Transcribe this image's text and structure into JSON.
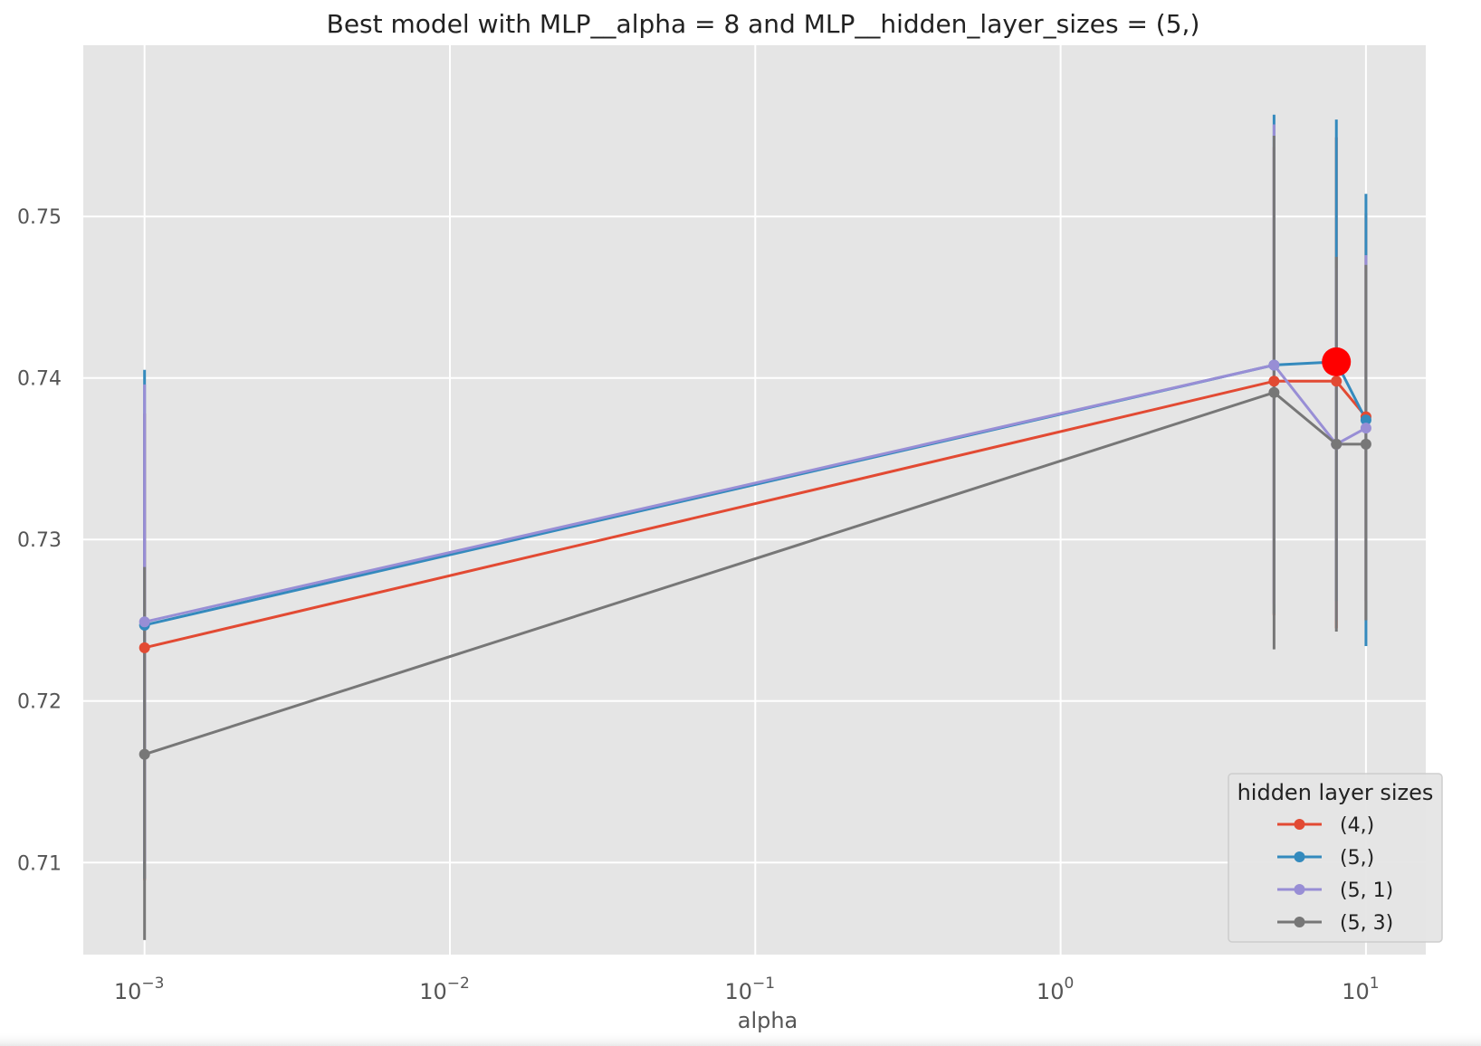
{
  "chart_data": {
    "type": "line",
    "title": "Best model with MLP__alpha = 8 and MLP__hidden_layer_sizes = (5,)",
    "xlabel": "alpha",
    "ylabel": "",
    "xscale": "log",
    "xlim": [
      0.00063,
      15.7
    ],
    "ylim": [
      0.7043,
      0.7606
    ],
    "x_ticks": [
      {
        "value": 0.001,
        "base": "10",
        "exp": "−3"
      },
      {
        "value": 0.01,
        "base": "10",
        "exp": "−2"
      },
      {
        "value": 0.1,
        "base": "10",
        "exp": "−1"
      },
      {
        "value": 1,
        "base": "10",
        "exp": "0"
      },
      {
        "value": 10,
        "base": "10",
        "exp": "1"
      }
    ],
    "y_ticks": [
      {
        "value": 0.71,
        "label": "0.71"
      },
      {
        "value": 0.72,
        "label": "0.72"
      },
      {
        "value": 0.73,
        "label": "0.73"
      },
      {
        "value": 0.74,
        "label": "0.74"
      },
      {
        "value": 0.75,
        "label": "0.75"
      }
    ],
    "grid": true,
    "legend_title": "hidden layer sizes",
    "legend_position": "lower right",
    "x": [
      0.001,
      5,
      8,
      10
    ],
    "series": [
      {
        "name": "(4,)",
        "color": "#E24A33",
        "values": [
          0.7233,
          0.7398,
          0.7398,
          0.7376
        ],
        "err_low": [
          0.7089,
          0.7253,
          0.7245,
          0.725
        ],
        "err_high": [
          0.7378,
          0.7543,
          0.7549,
          0.7502
        ]
      },
      {
        "name": "(5,)",
        "color": "#348ABD",
        "values": [
          0.7247,
          0.7408,
          0.741,
          0.7374
        ],
        "err_low": [
          0.709,
          0.7254,
          0.7262,
          0.7234
        ],
        "err_high": [
          0.7405,
          0.7563,
          0.756,
          0.7514
        ]
      },
      {
        "name": "(5, 1)",
        "color": "#988ED5",
        "values": [
          0.7249,
          0.7408,
          0.7359,
          0.7369
        ],
        "err_low": [
          0.71,
          0.726,
          0.725,
          0.7262
        ],
        "err_high": [
          0.7396,
          0.7557,
          0.7468,
          0.7476
        ]
      },
      {
        "name": "(5, 3)",
        "color": "#777777",
        "values": [
          0.7167,
          0.7391,
          0.7359,
          0.7359
        ],
        "err_low": [
          0.7052,
          0.7232,
          0.7243,
          0.725
        ],
        "err_high": [
          0.7283,
          0.755,
          0.7475,
          0.747
        ]
      }
    ],
    "best_point": {
      "x": 8,
      "y": 0.741,
      "color": "#FF0000"
    }
  }
}
